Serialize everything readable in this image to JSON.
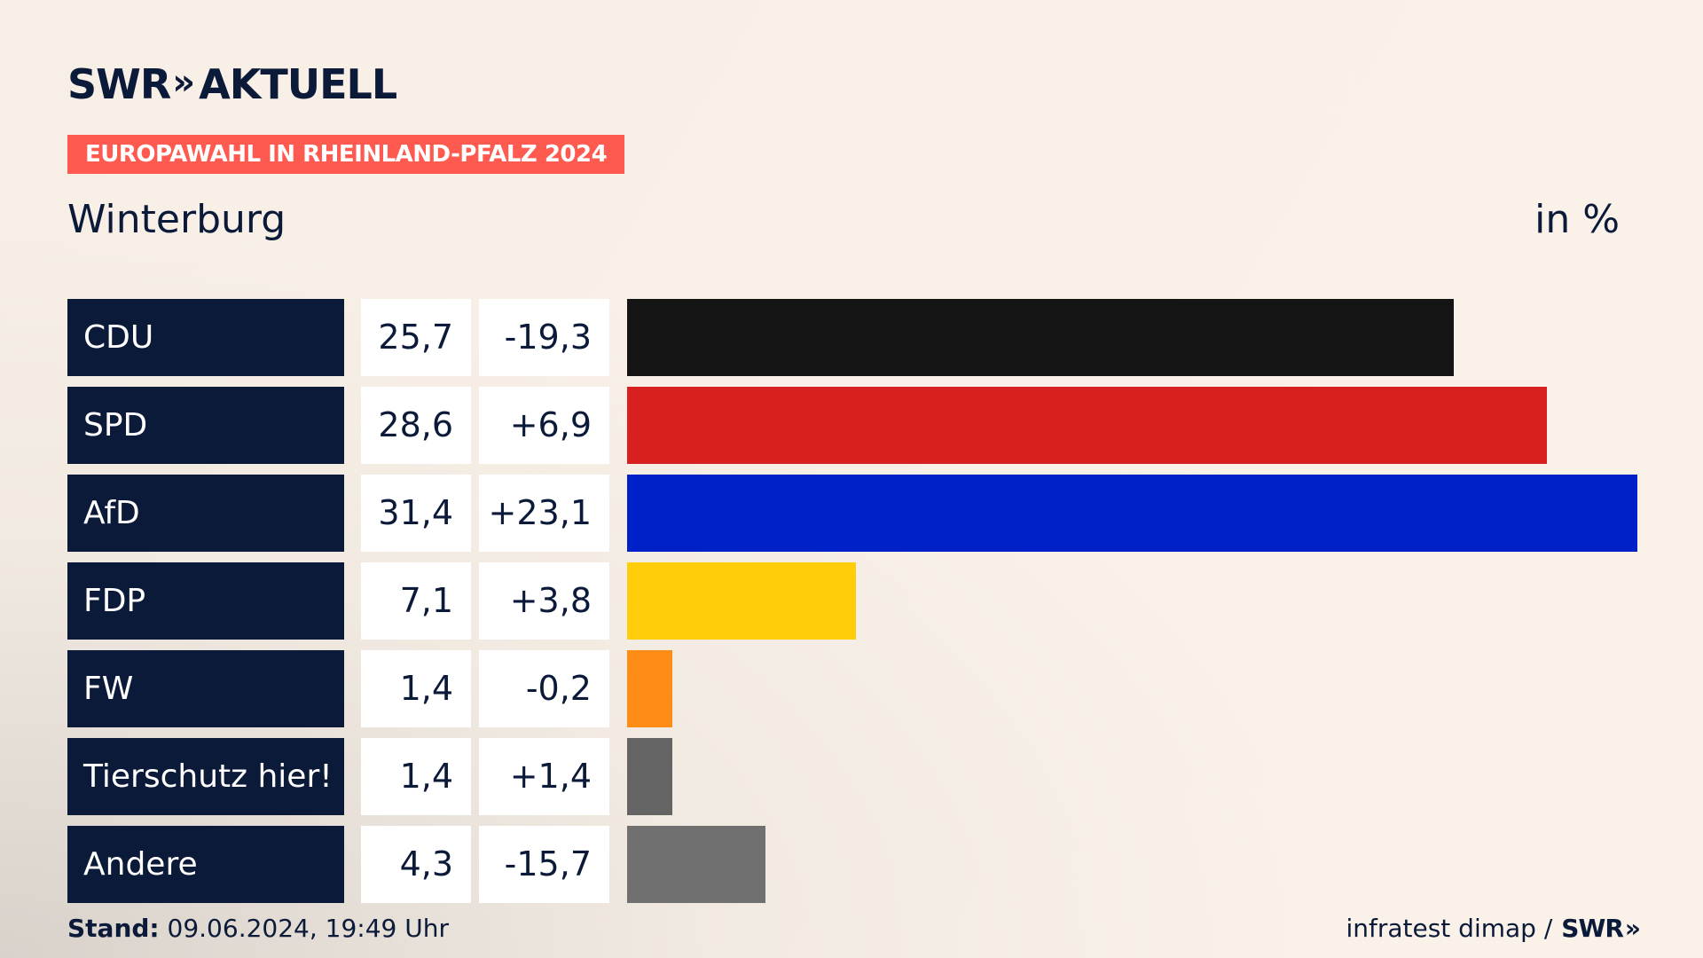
{
  "header": {
    "brand_left": "SWR",
    "brand_chevrons": "»",
    "brand_right": "AKTUELL",
    "election_tag": "EUROPAWAHL IN RHEINLAND-PFALZ 2024",
    "region": "Winterburg",
    "unit": "in %"
  },
  "footer": {
    "stand_label": "Stand:",
    "stand_value": "09.06.2024, 19:49 Uhr",
    "source": "infratest dimap /",
    "source_brand": "SWR",
    "source_brand_chevrons": "»"
  },
  "colors": {
    "navy": "#0c1a3a",
    "accent": "#ff5a4f"
  },
  "chart_data": {
    "type": "bar",
    "orientation": "horizontal",
    "categories": [
      "CDU",
      "SPD",
      "AfD",
      "FDP",
      "FW",
      "Tierschutz hier!",
      "Andere"
    ],
    "series": [
      {
        "values": [
          25.7,
          28.6,
          31.4,
          7.1,
          1.4,
          1.4,
          4.3
        ],
        "value_labels": [
          "25,7",
          "28,6",
          "31,4",
          "7,1",
          "1,4",
          "1,4",
          "4,3"
        ],
        "diff_labels": [
          "-19,3",
          "+6,9",
          "+23,1",
          "+3,8",
          "-0,2",
          "+1,4",
          "-15,7"
        ],
        "diffs": [
          -19.3,
          6.9,
          23.1,
          3.8,
          -0.2,
          1.4,
          -15.7
        ],
        "colors": [
          "#141414",
          "#d82020",
          "#0020c8",
          "#ffcd0a",
          "#ff8c14",
          "#646464",
          "#707070"
        ]
      }
    ],
    "xlim": [
      0,
      31.4
    ],
    "grid": false,
    "legend": "none"
  }
}
